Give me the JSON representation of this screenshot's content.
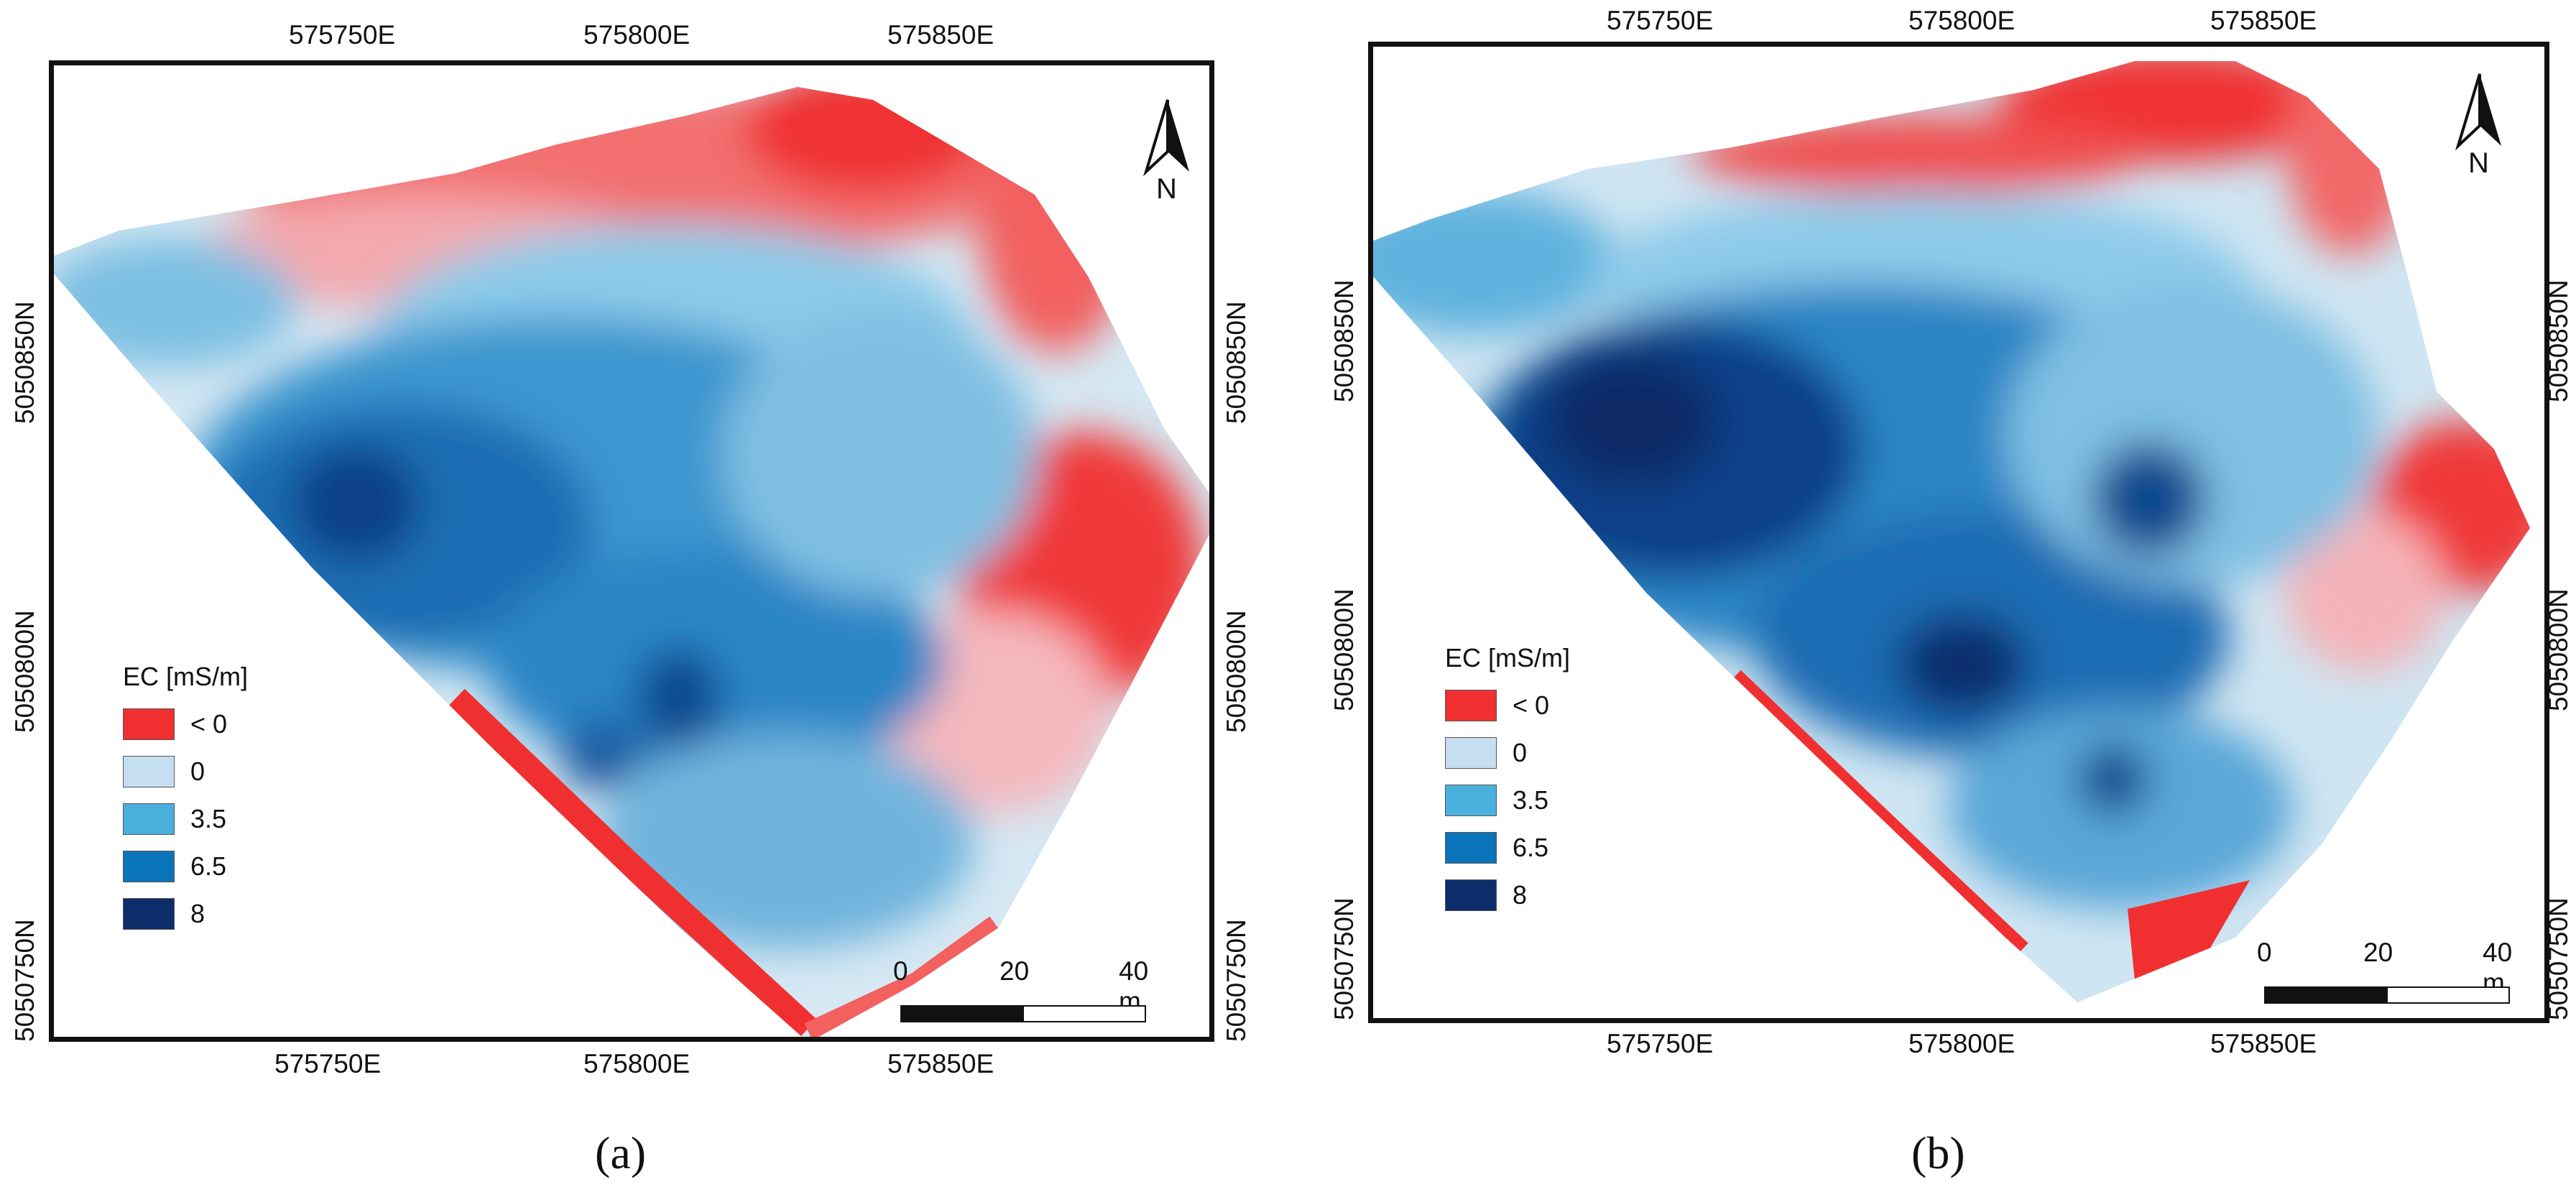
{
  "panels": [
    {
      "id": "a",
      "caption": "(a)",
      "x_ticks_top": [
        "575750E",
        "575800E",
        "575850E"
      ],
      "x_ticks_bottom": [
        "575750E",
        "575800E",
        "575850E"
      ],
      "y_ticks_left": [
        "5050850N",
        "5050800N",
        "5050750N"
      ],
      "y_ticks_right": [
        "5050850N",
        "5050800N",
        "5050750N"
      ],
      "legend": {
        "title": "EC [mS/m]",
        "items": [
          {
            "label": "< 0",
            "color": "#f03030"
          },
          {
            "label": "0",
            "color": "#c6dff0"
          },
          {
            "label": "3.5",
            "color": "#4ab0dc"
          },
          {
            "label": "6.5",
            "color": "#0a74bb"
          },
          {
            "label": "8",
            "color": "#0d2d6a"
          }
        ]
      },
      "scale_bar": {
        "labels": [
          "0",
          "20",
          "40 m"
        ]
      },
      "north_label": "N"
    },
    {
      "id": "b",
      "caption": "(b)",
      "x_ticks_top": [
        "575750E",
        "575800E",
        "575850E"
      ],
      "x_ticks_bottom": [
        "575750E",
        "575800E",
        "575850E"
      ],
      "y_ticks_left": [
        "5050850N",
        "5050800N",
        "5050750N"
      ],
      "y_ticks_right": [
        "5050850N",
        "5050800N",
        "5050750N"
      ],
      "legend": {
        "title": "EC [mS/m]",
        "items": [
          {
            "label": "< 0",
            "color": "#f03030"
          },
          {
            "label": "0",
            "color": "#c6dff0"
          },
          {
            "label": "3.5",
            "color": "#4ab0dc"
          },
          {
            "label": "6.5",
            "color": "#0a74bb"
          },
          {
            "label": "8",
            "color": "#0d2d6a"
          }
        ]
      },
      "scale_bar": {
        "labels": [
          "0",
          "20",
          "40 m"
        ]
      },
      "north_label": "N"
    }
  ]
}
